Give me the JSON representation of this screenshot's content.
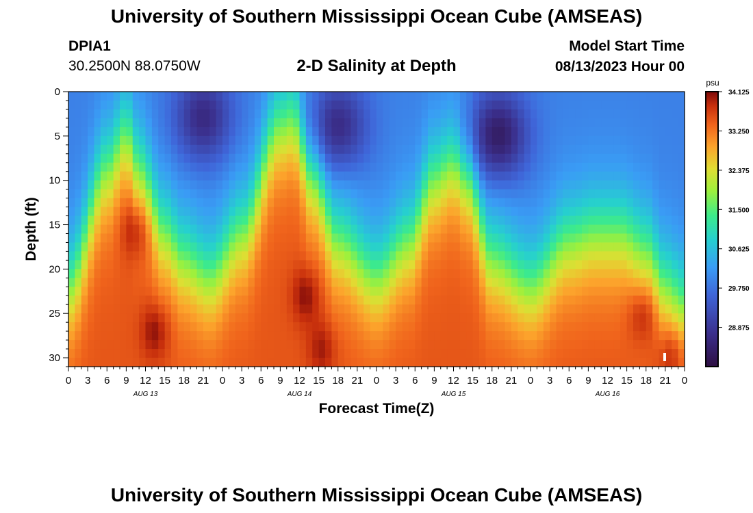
{
  "header": {
    "title": "University of Southern Mississippi Ocean Cube (AMSEAS)",
    "station_id": "DPIA1",
    "coordinates": "30.2500N  88.0750W",
    "chart_title": "2-D Salinity at Depth",
    "model_start_label": "Model Start Time",
    "model_start_value": "08/13/2023 Hour 00"
  },
  "footer": {
    "title": "University of Southern Mississippi Ocean Cube (AMSEAS)"
  },
  "chart_data": {
    "type": "heatmap",
    "title": "2-D Salinity at Depth",
    "xlabel": "Forecast Time(Z)",
    "ylabel": "Depth (ft)",
    "x_tick_labels": [
      "0",
      "3",
      "6",
      "9",
      "12",
      "15",
      "18",
      "21",
      "0",
      "3",
      "6",
      "9",
      "12",
      "15",
      "18",
      "21",
      "0",
      "3",
      "6",
      "9",
      "12",
      "15",
      "18",
      "21",
      "0",
      "3",
      "6",
      "9",
      "12",
      "15",
      "18",
      "21",
      "0"
    ],
    "x_range_hours": [
      0,
      96
    ],
    "day_labels": [
      {
        "label": "AUG 13",
        "hour": 12
      },
      {
        "label": "AUG 14",
        "hour": 36
      },
      {
        "label": "AUG 15",
        "hour": 60
      },
      {
        "label": "AUG 16",
        "hour": 84
      }
    ],
    "y_ticks": [
      0,
      5,
      10,
      15,
      20,
      25,
      30
    ],
    "y_range_ft": [
      0,
      31
    ],
    "colorbar": {
      "unit": "psu",
      "min": 28.0,
      "max": 34.125,
      "tick_labels": [
        "34.125",
        "33.250",
        "32.375",
        "31.500",
        "30.625",
        "29.750",
        "28.875"
      ],
      "tick_values": [
        34.125,
        33.25,
        32.375,
        31.5,
        30.625,
        29.75,
        28.875
      ]
    },
    "structure": {
      "surface_value_psu": 29.9,
      "deep_value_psu": 33.5,
      "halocline_depth_ft_by_hour": [
        [
          0,
          22
        ],
        [
          6,
          9
        ],
        [
          9,
          5
        ],
        [
          11,
          9
        ],
        [
          15,
          16
        ],
        [
          18,
          19
        ],
        [
          22,
          21
        ],
        [
          27,
          16
        ],
        [
          33,
          4
        ],
        [
          35,
          3
        ],
        [
          38,
          10
        ],
        [
          42,
          17
        ],
        [
          48,
          21
        ],
        [
          53,
          17
        ],
        [
          57,
          10
        ],
        [
          60,
          8
        ],
        [
          62,
          10
        ],
        [
          66,
          19
        ],
        [
          72,
          22
        ],
        [
          78,
          17
        ],
        [
          82,
          16
        ],
        [
          86,
          16
        ],
        [
          90,
          18
        ],
        [
          93,
          22
        ],
        [
          96,
          24
        ]
      ],
      "fresh_minima": [
        {
          "hour": 21,
          "depth_ft": 3,
          "value_psu": 28.6
        },
        {
          "hour": 42,
          "depth_ft": 4,
          "value_psu": 28.6
        },
        {
          "hour": 67,
          "depth_ft": 5,
          "value_psu": 28.3
        }
      ],
      "salty_maxima": [
        {
          "hour": 10.5,
          "depth_ft": 15.5,
          "value_psu": 34.1
        },
        {
          "hour": 13.5,
          "depth_ft": 27,
          "value_psu": 34.1
        },
        {
          "hour": 37,
          "depth_ft": 23,
          "value_psu": 34.1
        },
        {
          "hour": 39.5,
          "depth_ft": 29,
          "value_psu": 34.0
        },
        {
          "hour": 89.5,
          "depth_ft": 25,
          "value_psu": 34.1
        },
        {
          "hour": 94,
          "depth_ft": 29.5,
          "value_psu": 34.1
        }
      ]
    }
  }
}
